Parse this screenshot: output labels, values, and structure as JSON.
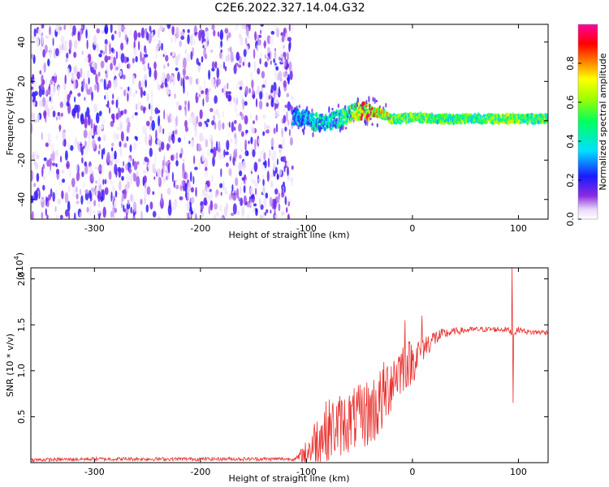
{
  "figure": {
    "title": "C2E6.2022.327.14.04.G32"
  },
  "chart_data": [
    {
      "type": "heatmap",
      "title": "C2E6.2022.327.14.04.G32",
      "xlabel": "Height of straight line (km)",
      "ylabel": "Frequency (Hz)",
      "xlim": [
        -360,
        128
      ],
      "ylim": [
        -50,
        49
      ],
      "xticks": [
        -300,
        -200,
        -100,
        0,
        100
      ],
      "xtick_labels": [
        "-300",
        "-200",
        "-100",
        "0",
        "100"
      ],
      "yticks": [
        -40,
        -20,
        0,
        20,
        40
      ],
      "ytick_labels": [
        "-40",
        "-20",
        "0",
        "20",
        "40"
      ],
      "noise_region_x": [
        -360,
        -113
      ],
      "signal_ridge": {
        "x": [
          -113,
          -100,
          -90,
          -80,
          -70,
          -60,
          -50,
          -40,
          -30,
          -20,
          -10,
          0,
          20,
          50,
          80,
          95,
          110,
          128
        ],
        "frequency": [
          2,
          1,
          -1,
          -1,
          1,
          3,
          5,
          5,
          4,
          1,
          1,
          2,
          1,
          1,
          1,
          1,
          1,
          1
        ],
        "amplitude": [
          0.35,
          0.4,
          0.45,
          0.45,
          0.5,
          0.6,
          0.85,
          0.9,
          0.8,
          0.7,
          0.6,
          0.7,
          0.6,
          0.6,
          0.65,
          0.7,
          0.6,
          0.6
        ]
      },
      "colorbar": {
        "label": "Normalized spectral amplitude",
        "range": [
          0.0,
          1.0
        ],
        "ticks": [
          0.0,
          0.2,
          0.4,
          0.6,
          0.8
        ],
        "tick_labels": [
          "0.0",
          "0.2",
          "0.4",
          "0.6",
          "0.8"
        ],
        "colormap": "rainbow (white-violet-blue-cyan-green-yellow-red-magenta)"
      },
      "grid": false
    },
    {
      "type": "line",
      "xlabel": "Height of straight line (km)",
      "ylabel": "SNR (10 * v/v)",
      "y_multiplier_label": "(x10",
      "y_multiplier_exp": "4",
      "xlim": [
        -360,
        128
      ],
      "ylim": [
        0,
        2.12
      ],
      "xticks": [
        -300,
        -200,
        -100,
        0,
        100
      ],
      "xtick_labels": [
        "-300",
        "-200",
        "-100",
        "0",
        "100"
      ],
      "yticks": [
        0.5,
        1.0,
        1.5,
        2.0
      ],
      "ytick_labels": [
        "0.5",
        "1.0",
        "1.5",
        "2.0"
      ],
      "series": [
        {
          "color": "#e8302e",
          "x": [
            -360,
            -300,
            -200,
            -110,
            -100,
            -90,
            -80,
            -70,
            -60,
            -50,
            -40,
            -30,
            -20,
            -10,
            0,
            10,
            20,
            30,
            40,
            60,
            80,
            90,
            95,
            100,
            110,
            128
          ],
          "y": [
            0.03,
            0.04,
            0.04,
            0.04,
            0.1,
            0.25,
            0.35,
            0.4,
            0.45,
            0.5,
            0.55,
            0.65,
            0.9,
            1.05,
            1.1,
            1.25,
            1.35,
            1.4,
            1.43,
            1.45,
            1.45,
            1.45,
            1.4,
            1.45,
            1.42,
            1.42
          ],
          "noise_amplitude": [
            0.02,
            0.02,
            0.02,
            0.02,
            0.15,
            0.3,
            0.35,
            0.35,
            0.35,
            0.35,
            0.4,
            0.4,
            0.35,
            0.3,
            0.25,
            0.15,
            0.1,
            0.06,
            0.04,
            0.03,
            0.03,
            0.03,
            0.03,
            0.03,
            0.03,
            0.03
          ],
          "spikes": [
            {
              "x": 94,
              "y": 2.12
            },
            {
              "x": 95,
              "y": 0.65
            },
            {
              "x": -7,
              "y": 1.55
            },
            {
              "x": 9,
              "y": 1.6
            }
          ]
        }
      ],
      "grid": false
    }
  ]
}
